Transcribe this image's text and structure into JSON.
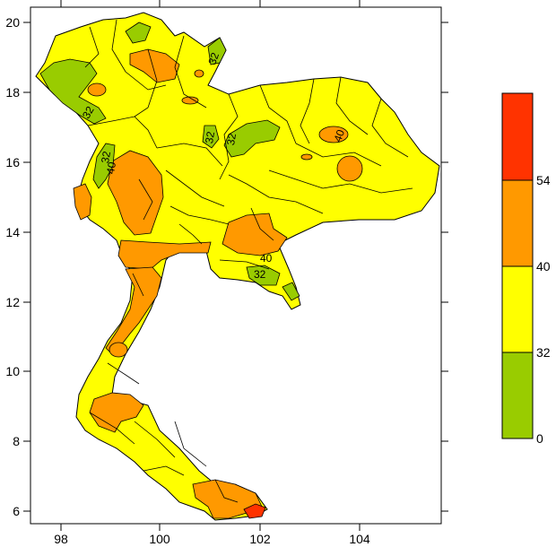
{
  "map": {
    "x_ticks": [
      "98",
      "100",
      "102",
      "104"
    ],
    "y_ticks": [
      "6",
      "8",
      "10",
      "12",
      "14",
      "16",
      "18",
      "20"
    ],
    "contour_labels": [
      "32",
      "32",
      "32",
      "32",
      "40",
      "40",
      "40",
      "32",
      "32"
    ]
  },
  "legend": {
    "bands": [
      {
        "from": 0,
        "to": 32,
        "color": "#99cc00"
      },
      {
        "from": 32,
        "to": 40,
        "color": "#ffff00"
      },
      {
        "from": 40,
        "to": 54,
        "color": "#ff9900"
      },
      {
        "from": 54,
        "to": null,
        "color": "#ff3300"
      }
    ],
    "labels": [
      "0",
      "32",
      "40",
      "54"
    ]
  },
  "colors": {
    "low": "#99cc00",
    "mid": "#ffff00",
    "high": "#ff9900",
    "max": "#ff3300",
    "border": "#000000"
  }
}
